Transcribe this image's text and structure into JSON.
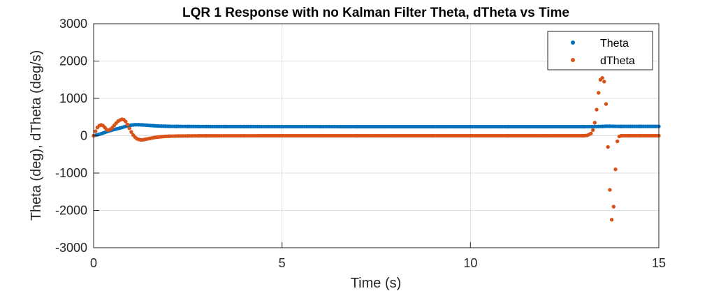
{
  "chart_data": {
    "type": "scatter",
    "title": "LQR 1 Response with no Kalman Filter  Theta, dTheta vs Time",
    "xlabel": "Time (s)",
    "ylabel": "Theta (deg), dTheta (deg/s)",
    "xlim": [
      0,
      15
    ],
    "ylim": [
      -3000,
      3000
    ],
    "xticks": [
      0,
      5,
      10,
      15
    ],
    "yticks": [
      -3000,
      -2000,
      -1000,
      0,
      1000,
      2000,
      3000
    ],
    "x_tick_labels": [
      "0",
      "5",
      "10",
      "15"
    ],
    "y_tick_labels": [
      "-3000",
      "-2000",
      "-1000",
      "0",
      "1000",
      "2000",
      "3000"
    ],
    "grid": true,
    "legend_position": "top-right",
    "series": [
      {
        "name": "Theta",
        "color": "#0072BD",
        "x": [
          0,
          0.1,
          0.2,
          0.3,
          0.4,
          0.5,
          0.6,
          0.7,
          0.8,
          0.9,
          1.0,
          1.1,
          1.2,
          1.3,
          1.4,
          1.5,
          1.6,
          1.7,
          1.8,
          1.9,
          2.0,
          2.2,
          2.5,
          2.8,
          3.0,
          3.5,
          4.0,
          5.0,
          6.0,
          7.0,
          8.0,
          9.0,
          10.0,
          11.0,
          12.0,
          13.0,
          13.3,
          13.5,
          13.6,
          13.7,
          13.8,
          14.0,
          14.5,
          15.0
        ],
        "y": [
          0,
          25,
          55,
          90,
          125,
          155,
          180,
          205,
          235,
          265,
          285,
          295,
          295,
          290,
          283,
          275,
          268,
          262,
          258,
          255,
          252,
          250,
          248,
          247,
          246,
          245,
          245,
          244,
          244,
          243,
          243,
          243,
          243,
          243,
          243,
          243,
          245,
          250,
          255,
          255,
          252,
          250,
          250,
          250
        ]
      },
      {
        "name": "dTheta",
        "color": "#D95319",
        "x": [
          0,
          0.05,
          0.1,
          0.15,
          0.2,
          0.25,
          0.3,
          0.35,
          0.4,
          0.45,
          0.5,
          0.55,
          0.6,
          0.65,
          0.7,
          0.75,
          0.8,
          0.85,
          0.9,
          0.95,
          1.0,
          1.05,
          1.1,
          1.15,
          1.2,
          1.25,
          1.3,
          1.35,
          1.4,
          1.5,
          1.6,
          1.7,
          1.8,
          1.9,
          2.0,
          2.2,
          2.5,
          2.8,
          3.0,
          4.0,
          5.0,
          6.0,
          7.0,
          8.0,
          9.0,
          10.0,
          11.0,
          12.0,
          13.0,
          13.1,
          13.2,
          13.25,
          13.3,
          13.35,
          13.4,
          13.45,
          13.5,
          13.55,
          13.6,
          13.65,
          13.7,
          13.75,
          13.8,
          13.85,
          13.9,
          13.95,
          14.0,
          14.2,
          14.5,
          15.0
        ],
        "y": [
          0,
          120,
          220,
          270,
          290,
          270,
          220,
          160,
          150,
          175,
          220,
          280,
          340,
          390,
          420,
          440,
          430,
          380,
          300,
          200,
          100,
          20,
          -40,
          -80,
          -100,
          -110,
          -110,
          -100,
          -90,
          -70,
          -50,
          -35,
          -25,
          -18,
          -12,
          -8,
          -5,
          -3,
          -2,
          -1,
          0,
          0,
          0,
          0,
          0,
          0,
          0,
          0,
          0,
          10,
          60,
          150,
          350,
          700,
          1150,
          1500,
          1550,
          1450,
          850,
          -300,
          -1450,
          -2250,
          -1900,
          -900,
          -150,
          -20,
          0,
          0,
          0,
          0
        ]
      }
    ]
  }
}
